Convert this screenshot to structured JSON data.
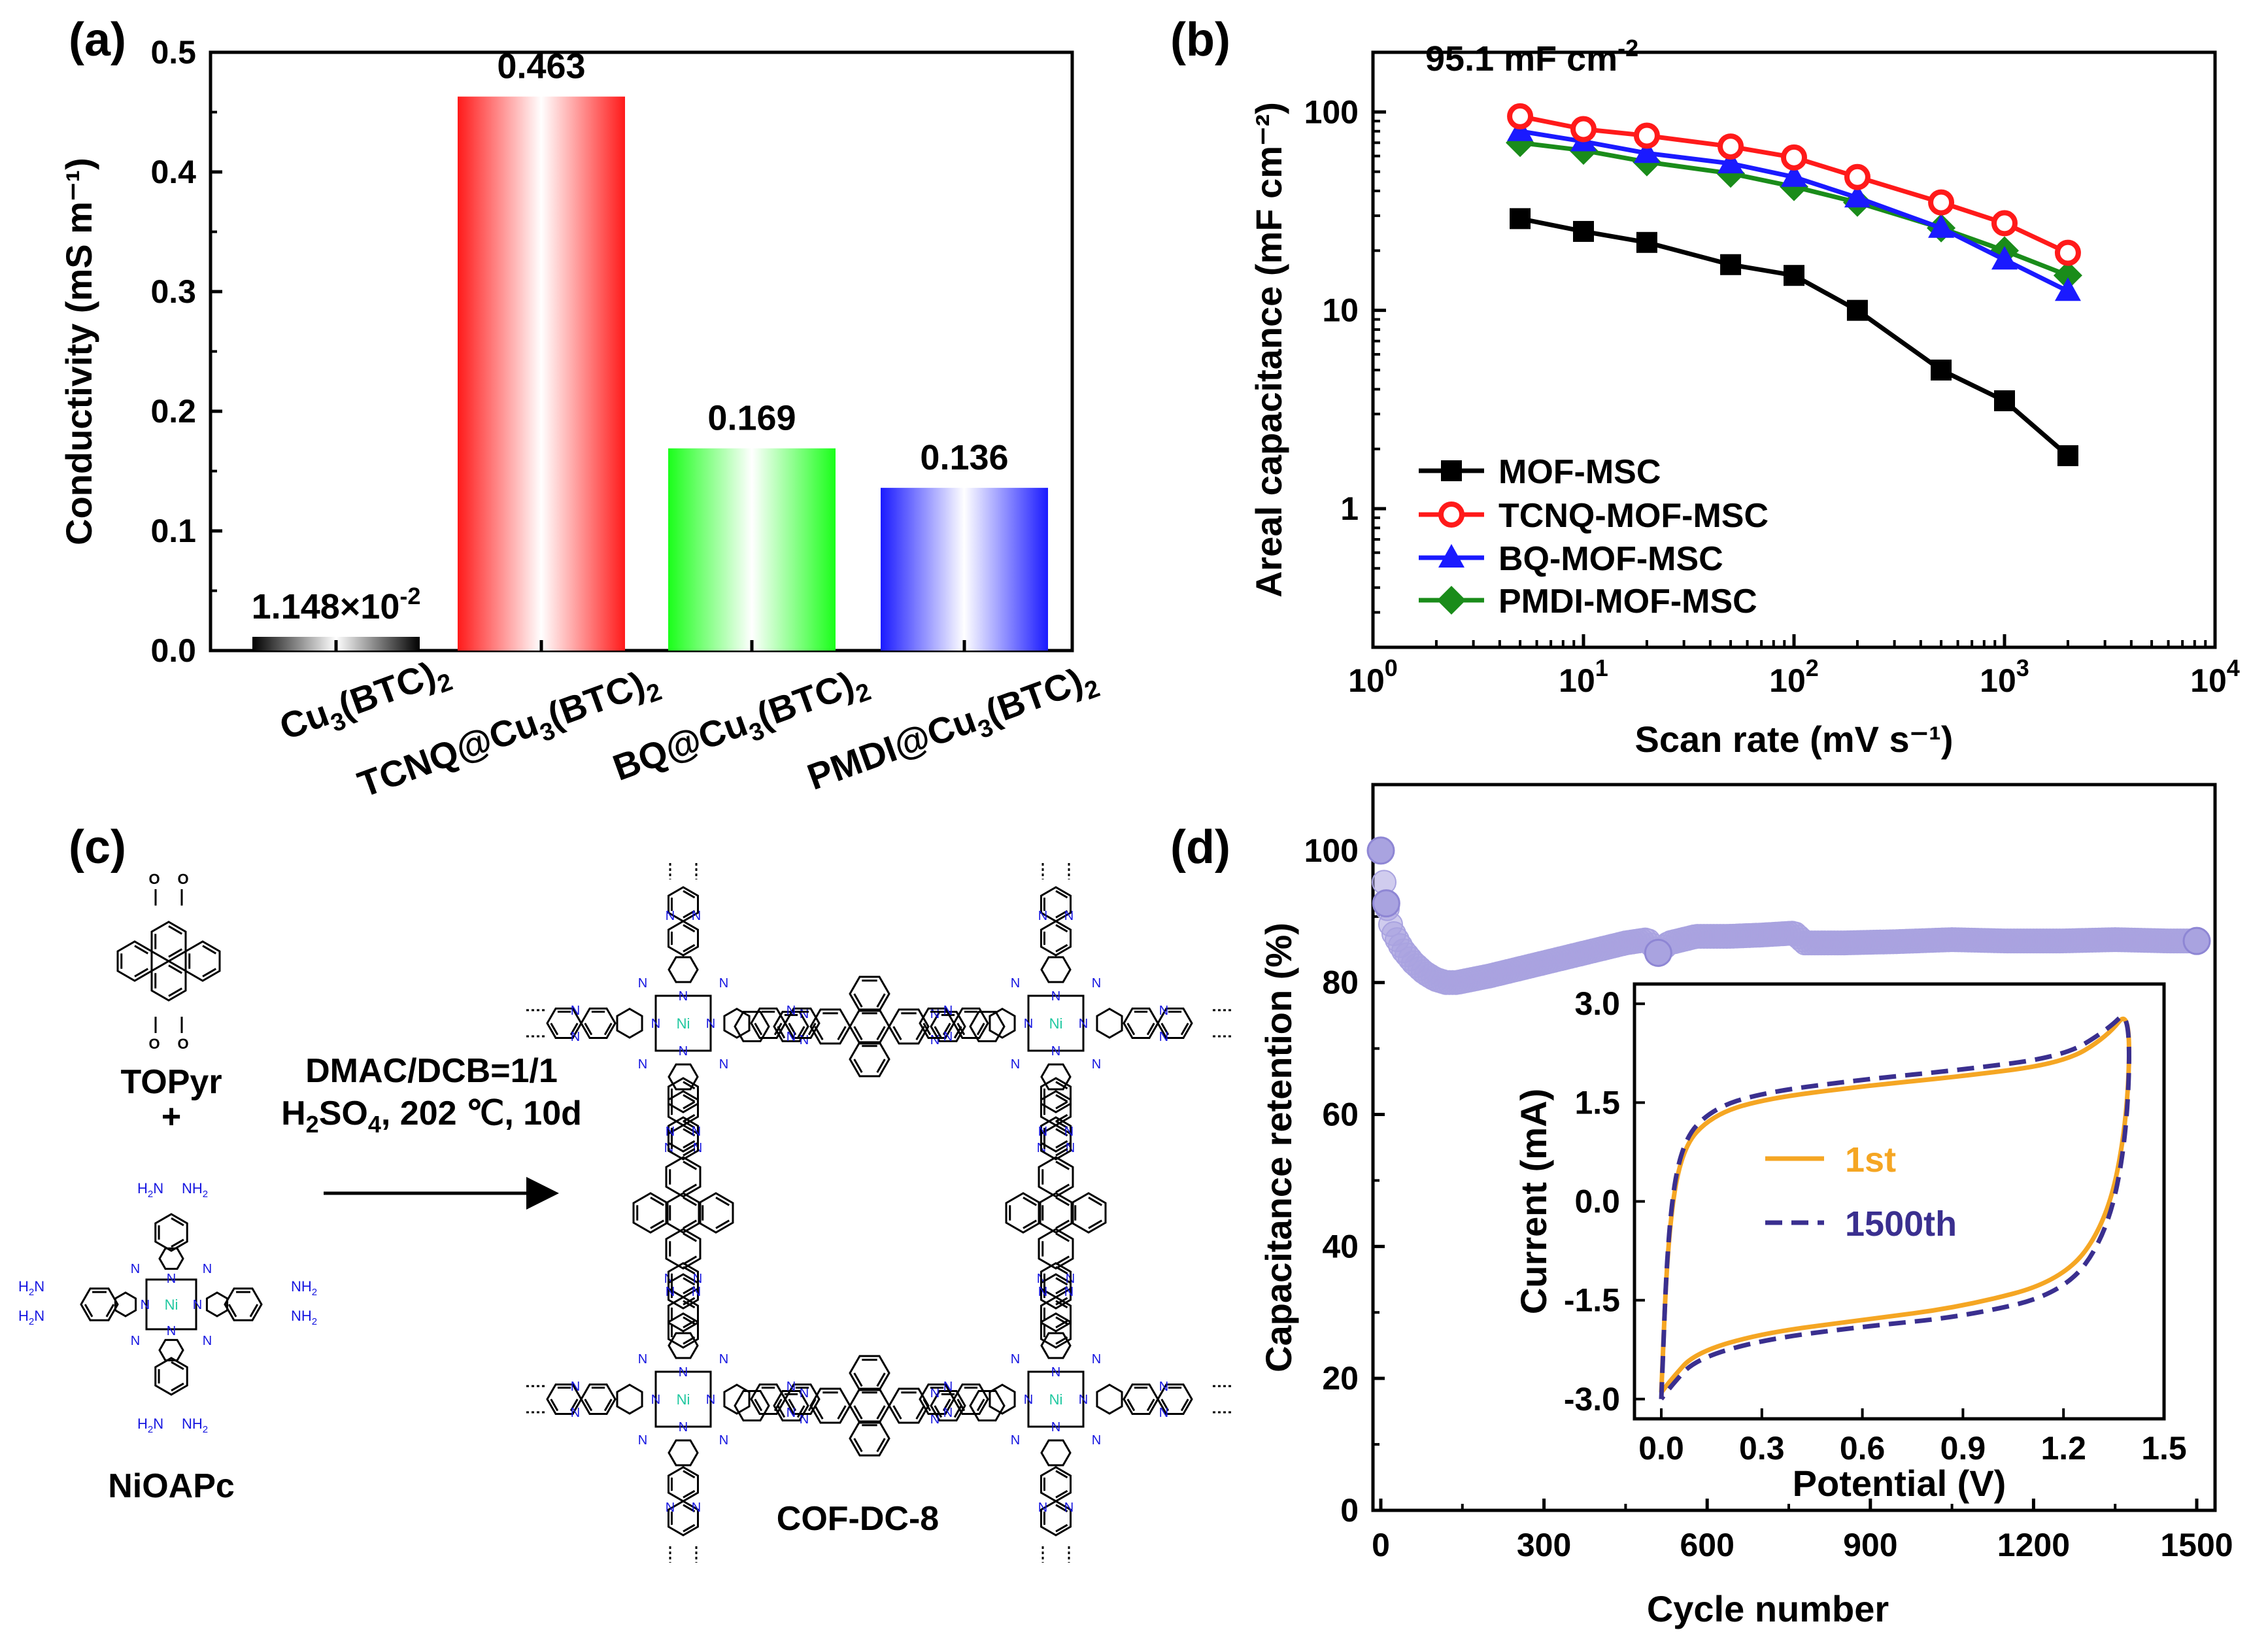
{
  "panels": {
    "a": "(a)",
    "b": "(b)",
    "c": "(c)",
    "d": "(d)"
  },
  "colors": {
    "axis": "#000000",
    "mof": "#000000",
    "tcnq": "#ff1a1a",
    "bq": "#1a1aff",
    "pmdi": "#1a8c1a",
    "retention": "#a9a3e0",
    "first": "#f5a623",
    "cycle1500": "#3a2f8f",
    "nitrogen": "#1515e0",
    "nickel": "#20c8a0"
  },
  "chart_data": [
    {
      "type": "bar",
      "title": "",
      "xlabel": "",
      "ylabel": "Conductivity (mS m⁻¹)",
      "ylim": [
        0,
        0.5
      ],
      "yticks": [
        "0.0",
        "0.1",
        "0.2",
        "0.3",
        "0.4",
        "0.5"
      ],
      "categories": [
        {
          "base": "Cu",
          "s1": "3",
          "mid": "(BTC)",
          "s2": "2",
          "prefix": ""
        },
        {
          "base": "Cu",
          "s1": "3",
          "mid": "(BTC)",
          "s2": "2",
          "prefix": "TCNQ@"
        },
        {
          "base": "Cu",
          "s1": "3",
          "mid": "(BTC)",
          "s2": "2",
          "prefix": "BQ@"
        },
        {
          "base": "Cu",
          "s1": "3",
          "mid": "(BTC)",
          "s2": "2",
          "prefix": "PMDI@"
        }
      ],
      "values": [
        0.01148,
        0.463,
        0.169,
        0.136
      ],
      "labels": [
        {
          "main": "1.148×10",
          "sup": "-2"
        },
        {
          "main": "0.463",
          "sup": ""
        },
        {
          "main": "0.169",
          "sup": ""
        },
        {
          "main": "0.136",
          "sup": ""
        }
      ],
      "bar_colors": [
        "#000000",
        "#ff1a1a",
        "#1aff1a",
        "#1a1aff"
      ]
    },
    {
      "type": "line",
      "xscale": "log",
      "yscale": "log",
      "xlim": [
        1,
        10000
      ],
      "ylim": [
        0.2,
        200
      ],
      "xlabel": "Scan rate (mV s⁻¹)",
      "ylabel": "Areal capacitance (mF cm⁻²)",
      "xticks": [
        {
          "base": "10",
          "exp": "0"
        },
        {
          "base": "10",
          "exp": "1"
        },
        {
          "base": "10",
          "exp": "2"
        },
        {
          "base": "10",
          "exp": "3"
        },
        {
          "base": "10",
          "exp": "4"
        }
      ],
      "yticks": [
        "1",
        "10",
        "100"
      ],
      "annotation": {
        "text": "95.1 mF cm",
        "sup": "-2"
      },
      "x": [
        5,
        10,
        20,
        50,
        100,
        200,
        500,
        1000,
        2000
      ],
      "series": [
        {
          "name": "MOF-MSC",
          "marker": "square",
          "values": [
            29,
            25,
            22,
            17,
            15,
            10,
            5,
            3.5,
            1.85
          ]
        },
        {
          "name": "TCNQ-MOF-MSC",
          "marker": "circle",
          "values": [
            95.1,
            82,
            76,
            67,
            59,
            47,
            35,
            27.5,
            19.5
          ]
        },
        {
          "name": "BQ-MOF-MSC",
          "marker": "triangle",
          "values": [
            80,
            71,
            62,
            55,
            47,
            37,
            26,
            18,
            12.5
          ]
        },
        {
          "name": "PMDI-MOF-MSC",
          "marker": "diamond",
          "values": [
            70,
            64,
            56,
            49,
            42,
            35,
            26,
            20,
            15
          ]
        }
      ]
    },
    {
      "type": "scatter",
      "xlabel": "Cycle number",
      "ylabel": "Capacitance retention (%)",
      "xlim": [
        0,
        1500
      ],
      "ylim": [
        0,
        110
      ],
      "xticks": [
        "0",
        "300",
        "600",
        "900",
        "1200",
        "1500"
      ],
      "yticks": [
        "0",
        "20",
        "40",
        "60",
        "80",
        "100"
      ],
      "series": [
        {
          "name": "retention",
          "x": [
            0,
            10,
            20,
            40,
            60,
            80,
            100,
            120,
            140,
            170,
            200,
            250,
            300,
            350,
            400,
            450,
            490,
            510,
            530,
            580,
            640,
            700,
            760,
            780,
            850,
            950,
            1050,
            1150,
            1250,
            1350,
            1450,
            1500
          ],
          "values": [
            100,
            92,
            88,
            85,
            83,
            81.5,
            80.5,
            80,
            80,
            80.5,
            81,
            82,
            83,
            84,
            85,
            86,
            86.5,
            84.5,
            86,
            87,
            87,
            87.2,
            87.5,
            86,
            86,
            86.2,
            86.5,
            86.3,
            86.3,
            86.5,
            86.3,
            86.3
          ]
        }
      ]
    },
    {
      "type": "line",
      "inset": true,
      "xlabel": "Potential (V)",
      "ylabel": "Current (mA)",
      "xlim": [
        -0.08,
        1.5
      ],
      "ylim": [
        -3.3,
        3.3
      ],
      "xticks": [
        "0.0",
        "0.3",
        "0.6",
        "0.9",
        "1.2",
        "1.5"
      ],
      "yticks": [
        "3.0",
        "1.5",
        "0.0",
        "-1.5",
        "-3.0"
      ],
      "series": [
        {
          "name": "1st",
          "style": "solid",
          "upper": [
            [
              0.0,
              -2.9
            ],
            [
              0.02,
              -0.5
            ],
            [
              0.06,
              0.8
            ],
            [
              0.15,
              1.3
            ],
            [
              0.3,
              1.55
            ],
            [
              0.6,
              1.75
            ],
            [
              0.9,
              1.9
            ],
            [
              1.2,
              2.1
            ],
            [
              1.33,
              2.5
            ],
            [
              1.4,
              2.95
            ]
          ],
          "lower": [
            [
              1.4,
              2.95
            ],
            [
              1.39,
              1.2
            ],
            [
              1.33,
              -0.3
            ],
            [
              1.2,
              -1.2
            ],
            [
              0.9,
              -1.6
            ],
            [
              0.6,
              -1.8
            ],
            [
              0.3,
              -2.0
            ],
            [
              0.1,
              -2.3
            ],
            [
              0.03,
              -2.7
            ],
            [
              0.0,
              -2.9
            ]
          ]
        },
        {
          "name": "1500th",
          "style": "dashed",
          "upper": [
            [
              0.0,
              -3.0
            ],
            [
              0.02,
              -0.4
            ],
            [
              0.06,
              0.9
            ],
            [
              0.15,
              1.4
            ],
            [
              0.3,
              1.65
            ],
            [
              0.6,
              1.85
            ],
            [
              0.9,
              2.0
            ],
            [
              1.2,
              2.2
            ],
            [
              1.33,
              2.6
            ],
            [
              1.4,
              2.95
            ]
          ],
          "lower": [
            [
              1.4,
              2.95
            ],
            [
              1.39,
              1.0
            ],
            [
              1.33,
              -0.5
            ],
            [
              1.2,
              -1.4
            ],
            [
              0.9,
              -1.75
            ],
            [
              0.6,
              -1.9
            ],
            [
              0.3,
              -2.1
            ],
            [
              0.1,
              -2.4
            ],
            [
              0.03,
              -2.8
            ],
            [
              0.0,
              -3.0
            ]
          ]
        }
      ]
    }
  ],
  "scheme": {
    "reactant1": "TOPyr",
    "plus": "+",
    "reactant2": "NiOAPc",
    "product": "COF-DC-8",
    "condition1": "DMAC/DCB=1/1",
    "condition2": {
      "a": "H",
      "sub": "2",
      "b": "SO",
      "sub2": "4",
      "c": ", 202 ℃, 10d"
    },
    "atom_N": "N",
    "atom_Ni": "Ni",
    "amine": {
      "base": "H",
      "sub": "2",
      "tail": "N"
    },
    "amine_r": {
      "base": "NH",
      "sub": "2"
    }
  }
}
